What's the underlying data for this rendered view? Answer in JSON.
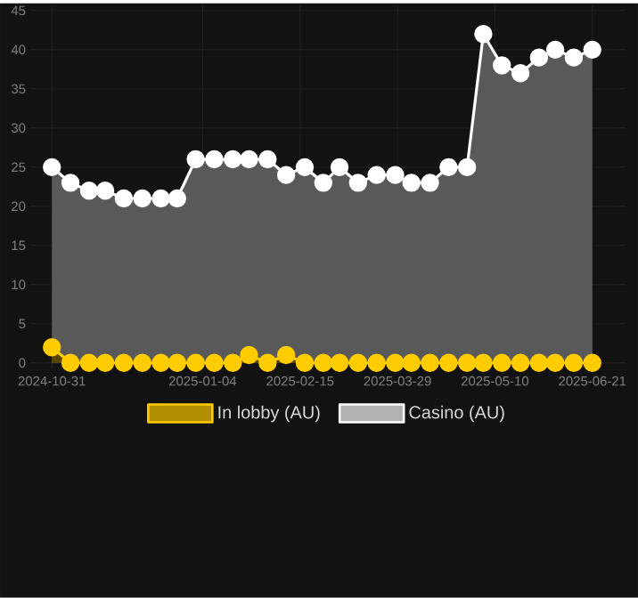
{
  "chart_data": {
    "type": "area",
    "x": [
      "2024-10-31",
      "2024-11-08",
      "2024-11-16",
      "2024-11-23",
      "2024-12-01",
      "2024-12-09",
      "2024-12-17",
      "2024-12-24",
      "2025-01-01",
      "2025-01-09",
      "2025-01-17",
      "2025-01-24",
      "2025-02-01",
      "2025-02-09",
      "2025-02-17",
      "2025-02-25",
      "2025-03-04",
      "2025-03-12",
      "2025-03-20",
      "2025-03-28",
      "2025-04-04",
      "2025-04-12",
      "2025-04-20",
      "2025-04-28",
      "2025-05-05",
      "2025-05-13",
      "2025-05-21",
      "2025-05-29",
      "2025-06-05",
      "2025-06-13",
      "2025-06-21"
    ],
    "series": [
      {
        "name": "In lobby (AU)",
        "color": "#ffcc00",
        "values": [
          2,
          0,
          0,
          0,
          0,
          0,
          0,
          0,
          0,
          0,
          0,
          1,
          0,
          1,
          0,
          0,
          0,
          0,
          0,
          0,
          0,
          0,
          0,
          0,
          0,
          0,
          0,
          0,
          0,
          0,
          0
        ]
      },
      {
        "name": "Casino (AU)",
        "color": "#ffffff",
        "values": [
          25,
          23,
          22,
          22,
          21,
          21,
          21,
          21,
          26,
          26,
          26,
          26,
          26,
          24,
          25,
          23,
          25,
          23,
          24,
          24,
          23,
          23,
          25,
          25,
          42,
          38,
          37,
          39,
          40,
          39,
          40
        ]
      }
    ],
    "xlim": [
      "2024-10-24",
      "2025-07-03"
    ],
    "xticks": [
      "2024-10-31",
      "2025-01-04",
      "2025-02-15",
      "2025-03-29",
      "2025-05-10",
      "2025-06-21"
    ],
    "ylim": [
      0,
      45
    ],
    "yticks": [
      0,
      5,
      10,
      15,
      20,
      25,
      30,
      35,
      40,
      45
    ],
    "grid": true,
    "legend": "bottom",
    "marker": "circle",
    "line_style": "solid"
  }
}
